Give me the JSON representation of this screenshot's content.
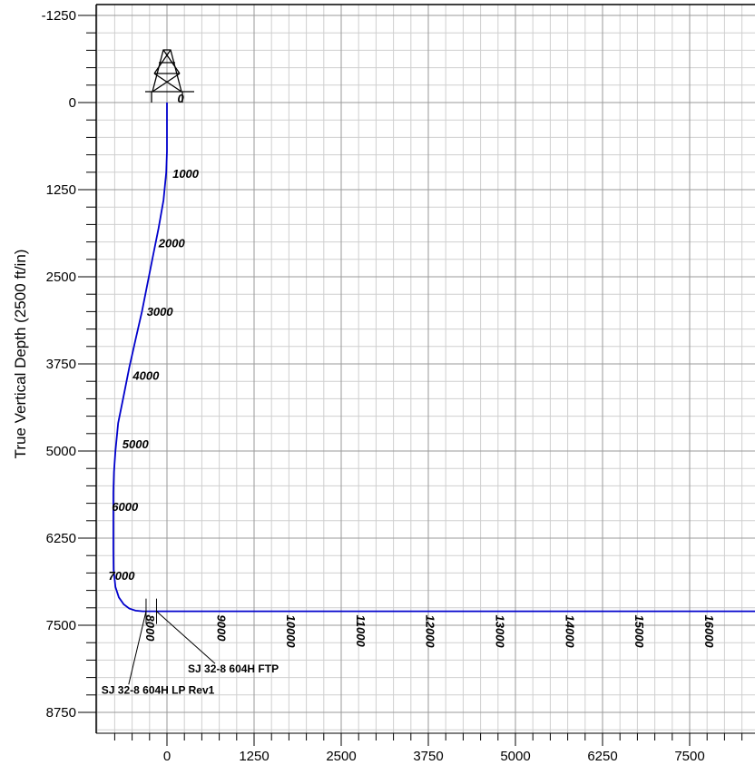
{
  "chart_data": {
    "type": "line",
    "title": "",
    "xlabel": "",
    "ylabel": "True Vertical Depth (2500 ft/in)",
    "xlim": [
      -1000,
      8250
    ],
    "ylim": [
      -1250,
      8750
    ],
    "y_inverted": true,
    "grid": true,
    "x_ticks": [
      "0",
      "1250",
      "2500",
      "3750",
      "5000",
      "6250",
      "7500"
    ],
    "x_tick_values": [
      0,
      1250,
      2500,
      3750,
      5000,
      6250,
      7500
    ],
    "y_ticks": [
      "-1250",
      "0",
      "1250",
      "2500",
      "3750",
      "5000",
      "6250",
      "7500",
      "8750"
    ],
    "y_tick_values": [
      -1250,
      0,
      1250,
      2500,
      3750,
      5000,
      6250,
      7500,
      8750
    ],
    "series": [
      {
        "color": "#0000cc",
        "x": [
          0,
          0,
          -10,
          -50,
          -120,
          -200,
          -280,
          -360,
          -450,
          -540,
          -620,
          -700,
          -740,
          -760,
          -770,
          -770,
          -770,
          -765,
          -740,
          -690,
          -620,
          -540,
          -450,
          -350,
          0,
          1000,
          2000,
          3000,
          4000,
          5000,
          6000,
          7000,
          8000,
          8500
        ],
        "y": [
          0,
          700,
          1000,
          1400,
          1800,
          2200,
          2600,
          3000,
          3400,
          3800,
          4200,
          4600,
          5000,
          5300,
          5600,
          6000,
          6400,
          6700,
          6950,
          7100,
          7200,
          7260,
          7290,
          7300,
          7300,
          7300,
          7300,
          7300,
          7300,
          7300,
          7300,
          7300,
          7300,
          7300
        ]
      }
    ],
    "md_labels": [
      {
        "text": "0",
        "x": 150,
        "y": 0,
        "rotation": 0
      },
      {
        "text": "1000",
        "x": 80,
        "y": 1080,
        "rotation": 0
      },
      {
        "text": "2000",
        "x": -120,
        "y": 2080,
        "rotation": 0
      },
      {
        "text": "3000",
        "x": -290,
        "y": 3060,
        "rotation": 0
      },
      {
        "text": "4000",
        "x": -490,
        "y": 3980,
        "rotation": 0
      },
      {
        "text": "5000",
        "x": -640,
        "y": 4960,
        "rotation": 0
      },
      {
        "text": "6000",
        "x": -790,
        "y": 5860,
        "rotation": 0
      },
      {
        "text": "7000",
        "x": -840,
        "y": 6850,
        "rotation": 0
      },
      {
        "text": "8000",
        "x": -300,
        "y": 7350,
        "rotation": 90
      },
      {
        "text": "9000",
        "x": 720,
        "y": 7350,
        "rotation": 90
      },
      {
        "text": "10000",
        "x": 1720,
        "y": 7350,
        "rotation": 90
      },
      {
        "text": "11000",
        "x": 2720,
        "y": 7350,
        "rotation": 90
      },
      {
        "text": "12000",
        "x": 3720,
        "y": 7350,
        "rotation": 90
      },
      {
        "text": "13000",
        "x": 4720,
        "y": 7350,
        "rotation": 90
      },
      {
        "text": "14000",
        "x": 5720,
        "y": 7350,
        "rotation": 90
      },
      {
        "text": "15000",
        "x": 6720,
        "y": 7350,
        "rotation": 90
      },
      {
        "text": "16000",
        "x": 7720,
        "y": 7350,
        "rotation": 90
      }
    ],
    "annotations": [
      {
        "text": "SJ 32-8 604H FTP",
        "target_x": -150,
        "target_y": 7300,
        "label_x": 300,
        "label_y": 8180
      },
      {
        "text": "SJ 32-8 604H LP Rev1",
        "target_x": -300,
        "target_y": 7300,
        "label_x": -940,
        "label_y": 8480
      }
    ]
  }
}
